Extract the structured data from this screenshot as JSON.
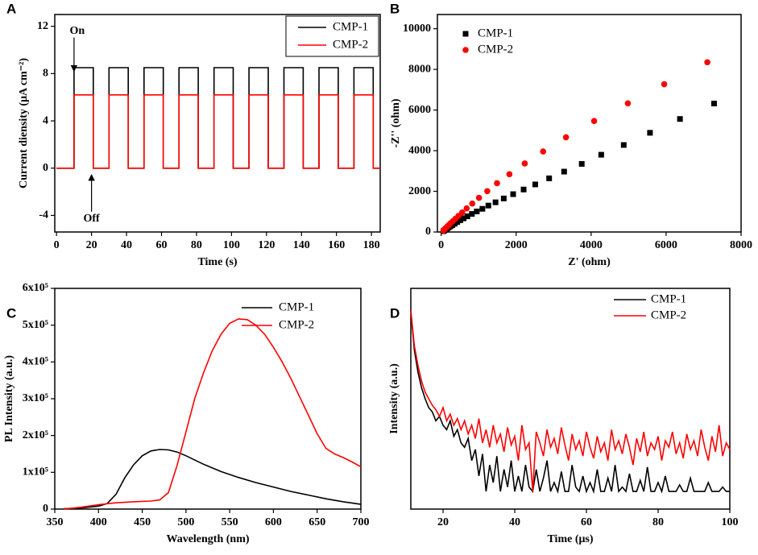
{
  "chart_data": [
    {
      "type": "line",
      "panel_label": "A",
      "xlabel": "Time (s)",
      "ylabel": "Current diensity (μA cm⁻²)",
      "xlim": [
        -1,
        185
      ],
      "ylim": [
        -5.4,
        13
      ],
      "xticks": [
        0,
        20,
        40,
        60,
        80,
        100,
        120,
        140,
        160,
        180
      ],
      "yticks": [
        -4,
        0,
        4,
        8,
        12
      ],
      "legend": "upper right",
      "x": [
        0,
        10,
        10,
        21,
        21,
        30,
        30,
        41,
        41,
        50,
        50,
        61,
        61,
        70,
        70,
        81,
        81,
        90,
        90,
        101,
        101,
        110,
        110,
        121,
        121,
        130,
        130,
        141,
        141,
        150,
        150,
        161,
        161,
        170,
        170,
        181,
        181,
        185
      ],
      "series": [
        {
          "name": "CMP-1",
          "color": "#000000",
          "values": [
            0,
            0,
            8.5,
            8.5,
            0,
            0,
            8.5,
            8.5,
            0,
            0,
            8.5,
            8.5,
            0,
            0,
            8.5,
            8.5,
            0,
            0,
            8.5,
            8.5,
            0,
            0,
            8.5,
            8.5,
            0,
            0,
            8.5,
            8.5,
            0,
            0,
            8.5,
            8.5,
            0,
            0,
            8.5,
            8.5,
            0,
            0
          ]
        },
        {
          "name": "CMP-2",
          "color": "#ff0000",
          "values": [
            0,
            0,
            6.2,
            6.2,
            0,
            0,
            6.2,
            6.2,
            0,
            0,
            6.2,
            6.2,
            0,
            0,
            6.2,
            6.2,
            0,
            0,
            6.2,
            6.2,
            0,
            0,
            6.2,
            6.2,
            0,
            0,
            6.2,
            6.2,
            0,
            0,
            6.2,
            6.2,
            0,
            0,
            6.2,
            6.2,
            0,
            0
          ]
        }
      ],
      "annotations": [
        {
          "text": "On",
          "x": 10,
          "y": 11.6
        },
        {
          "text": "Off",
          "x": 20,
          "y": -4.3
        }
      ]
    },
    {
      "type": "scatter",
      "panel_label": "B",
      "xlabel": "Z' (ohm)",
      "ylabel": "-Z'' (ohm)",
      "xlim": [
        -100,
        8000
      ],
      "ylim": [
        0,
        10700
      ],
      "xticks": [
        0,
        2000,
        4000,
        6000,
        8000
      ],
      "yticks": [
        0,
        2000,
        4000,
        6000,
        8000,
        10000
      ],
      "legend": "upper left",
      "series": [
        {
          "name": "CMP-1",
          "color": "#000000",
          "marker": "square",
          "x": [
            7280,
            6370,
            5570,
            4870,
            4270,
            3750,
            3280,
            2880,
            2510,
            2200,
            1920,
            1670,
            1450,
            1260,
            1100,
            950,
            820,
            700,
            600,
            510,
            430,
            360,
            300,
            250,
            200,
            160,
            120,
            90,
            60
          ],
          "values": [
            6320,
            5560,
            4880,
            4280,
            3800,
            3350,
            2970,
            2640,
            2340,
            2090,
            1860,
            1650,
            1460,
            1300,
            1140,
            1010,
            890,
            770,
            670,
            580,
            490,
            410,
            340,
            280,
            220,
            170,
            120,
            80,
            40
          ]
        },
        {
          "name": "CMP-2",
          "color": "#ff0000",
          "marker": "circle",
          "x": [
            7100,
            5950,
            4980,
            4080,
            3330,
            2720,
            2230,
            1820,
            1490,
            1230,
            1010,
            830,
            680,
            560,
            460,
            380,
            310,
            250,
            200,
            160,
            120,
            90,
            60
          ],
          "values": [
            8350,
            7270,
            6330,
            5460,
            4660,
            3960,
            3370,
            2840,
            2400,
            2010,
            1680,
            1400,
            1160,
            960,
            790,
            650,
            530,
            430,
            340,
            260,
            190,
            130,
            70
          ]
        }
      ]
    },
    {
      "type": "line",
      "panel_label": "C",
      "xlabel": "Wavelength (nm)",
      "ylabel": "PL Intensity (a.u.)",
      "xlim": [
        350,
        700
      ],
      "ylim": [
        0,
        600000
      ],
      "xticks": [
        350,
        400,
        450,
        500,
        550,
        600,
        650,
        700
      ],
      "yticks": [
        0,
        {
          "value": 100000,
          "label": "1x10⁵"
        },
        {
          "value": 200000,
          "label": "2x10⁵"
        },
        {
          "value": 300000,
          "label": "3x10⁵"
        },
        {
          "value": 400000,
          "label": "4x10⁵"
        },
        {
          "value": 500000,
          "label": "5x10⁵"
        },
        {
          "value": 600000,
          "label": "6x10⁵"
        }
      ],
      "legend": "upper right",
      "series": [
        {
          "name": "CMP-1",
          "color": "#000000",
          "x": [
            360,
            380,
            400,
            410,
            420,
            430,
            440,
            450,
            460,
            470,
            480,
            490,
            500,
            520,
            540,
            560,
            580,
            600,
            620,
            640,
            660,
            680,
            700
          ],
          "values": [
            1000,
            3000,
            8000,
            15000,
            40000,
            85000,
            120000,
            145000,
            158000,
            162000,
            161000,
            155000,
            145000,
            122000,
            102000,
            86000,
            72000,
            60000,
            48000,
            38000,
            28000,
            20000,
            13000
          ]
        },
        {
          "name": "CMP-2",
          "color": "#ff0000",
          "x": [
            360,
            380,
            400,
            420,
            440,
            460,
            470,
            480,
            490,
            500,
            510,
            520,
            530,
            540,
            550,
            560,
            570,
            580,
            590,
            600,
            610,
            620,
            630,
            640,
            650,
            660,
            670,
            680,
            690,
            700
          ],
          "values": [
            0,
            5000,
            12000,
            17000,
            20000,
            22000,
            25000,
            45000,
            120000,
            210000,
            300000,
            370000,
            430000,
            475000,
            505000,
            517000,
            515000,
            500000,
            475000,
            440000,
            400000,
            355000,
            305000,
            255000,
            205000,
            165000,
            150000,
            140000,
            128000,
            115000
          ]
        }
      ]
    },
    {
      "type": "line",
      "panel_label": "D",
      "xlabel": "Time (μs)",
      "ylabel": "Intensity (a.u.)",
      "xlim": [
        11,
        100
      ],
      "ylim": [
        0,
        1
      ],
      "xticks": [
        20,
        40,
        60,
        80,
        100
      ],
      "legend": "upper right",
      "x": [
        11,
        12,
        13,
        14,
        15,
        16,
        17,
        18,
        19,
        20,
        21,
        22,
        23,
        24,
        25,
        26,
        27,
        28,
        29,
        30,
        31,
        32,
        33,
        34,
        35,
        36,
        37,
        38,
        39,
        40,
        41,
        42,
        43,
        44,
        45,
        46,
        47,
        48,
        49,
        50,
        51,
        52,
        53,
        54,
        55,
        56,
        57,
        58,
        59,
        60,
        61,
        62,
        63,
        64,
        65,
        66,
        67,
        68,
        69,
        70,
        71,
        72,
        73,
        74,
        75,
        76,
        77,
        78,
        79,
        80,
        81,
        82,
        83,
        84,
        85,
        86,
        87,
        88,
        89,
        90,
        91,
        92,
        93,
        94,
        95,
        96,
        97,
        98,
        99,
        100
      ],
      "series": [
        {
          "name": "CMP-1",
          "color": "#000000",
          "values": [
            0.9,
            0.72,
            0.62,
            0.55,
            0.5,
            0.46,
            0.44,
            0.4,
            0.42,
            0.38,
            0.36,
            0.4,
            0.33,
            0.36,
            0.3,
            0.28,
            0.32,
            0.22,
            0.27,
            0.15,
            0.25,
            0.08,
            0.2,
            0.12,
            0.24,
            0.08,
            0.18,
            0.1,
            0.22,
            0.08,
            0.15,
            0.08,
            0.2,
            0.1,
            0.08,
            0.18,
            0.08,
            0.14,
            0.22,
            0.08,
            0.12,
            0.08,
            0.17,
            0.08,
            0.08,
            0.2,
            0.1,
            0.08,
            0.15,
            0.08,
            0.12,
            0.08,
            0.18,
            0.08,
            0.08,
            0.14,
            0.08,
            0.2,
            0.08,
            0.1,
            0.08,
            0.16,
            0.08,
            0.08,
            0.13,
            0.08,
            0.19,
            0.08,
            0.08,
            0.12,
            0.08,
            0.15,
            0.08,
            0.08,
            0.08,
            0.11,
            0.08,
            0.08,
            0.14,
            0.08,
            0.08,
            0.08,
            0.08,
            0.12,
            0.08,
            0.08,
            0.08,
            0.1,
            0.08,
            0.08
          ]
        },
        {
          "name": "CMP-2",
          "color": "#ff0000",
          "values": [
            0.9,
            0.74,
            0.65,
            0.58,
            0.53,
            0.5,
            0.47,
            0.45,
            0.42,
            0.46,
            0.4,
            0.43,
            0.38,
            0.41,
            0.36,
            0.4,
            0.34,
            0.38,
            0.32,
            0.41,
            0.3,
            0.36,
            0.28,
            0.38,
            0.3,
            0.34,
            0.26,
            0.37,
            0.29,
            0.33,
            0.22,
            0.38,
            0.27,
            0.3,
            0.08,
            0.35,
            0.3,
            0.24,
            0.36,
            0.28,
            0.32,
            0.25,
            0.37,
            0.29,
            0.22,
            0.34,
            0.27,
            0.31,
            0.24,
            0.35,
            0.28,
            0.23,
            0.33,
            0.26,
            0.3,
            0.22,
            0.36,
            0.27,
            0.31,
            0.25,
            0.34,
            0.28,
            0.2,
            0.32,
            0.26,
            0.35,
            0.24,
            0.3,
            0.27,
            0.33,
            0.22,
            0.31,
            0.28,
            0.35,
            0.25,
            0.3,
            0.23,
            0.34,
            0.27,
            0.31,
            0.24,
            0.36,
            0.28,
            0.22,
            0.33,
            0.26,
            0.38,
            0.24,
            0.3,
            0.27
          ]
        }
      ]
    }
  ]
}
